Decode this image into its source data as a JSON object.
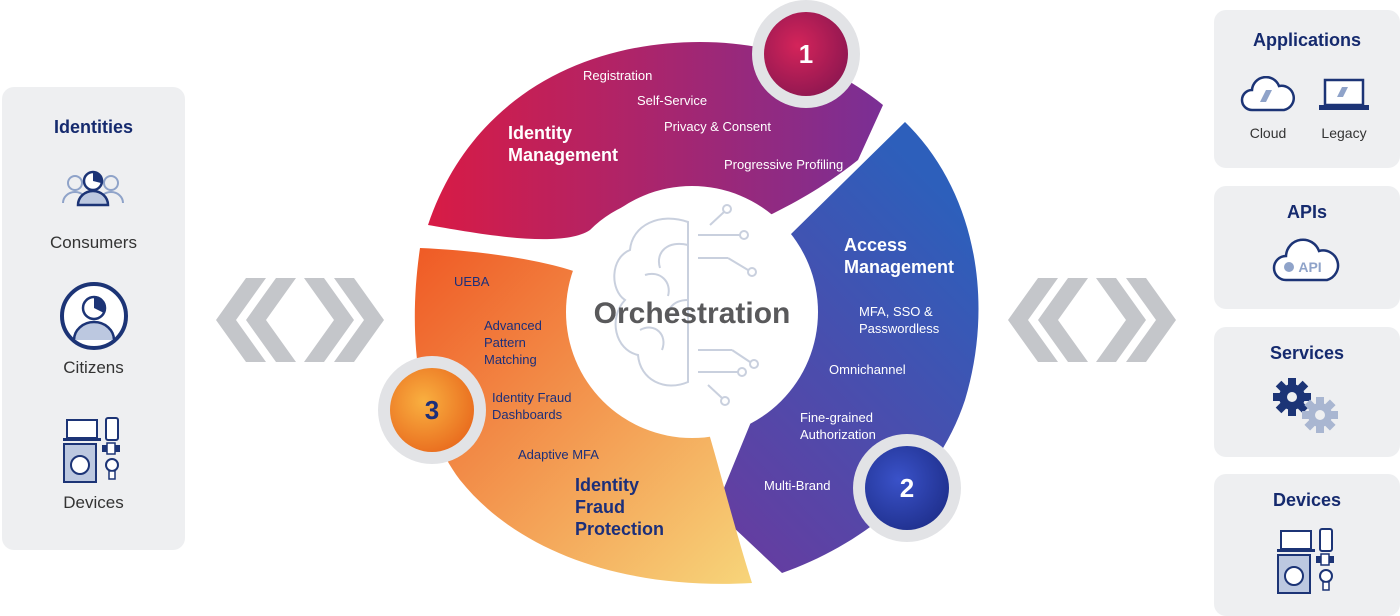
{
  "left_panel": {
    "title": "Identities",
    "items": [
      {
        "label": "Consumers",
        "icon": "consumers-icon"
      },
      {
        "label": "Citizens",
        "icon": "citizen-icon"
      },
      {
        "label": "Devices",
        "icon": "devices-icon"
      }
    ]
  },
  "center": {
    "title": "Orchestration",
    "segments": [
      {
        "number": "1",
        "title_lines": [
          "Identity",
          "Management"
        ],
        "items": [
          "Registration",
          "Self-Service",
          "Privacy & Consent",
          "Progressive Profiling"
        ]
      },
      {
        "number": "2",
        "title_lines": [
          "Access",
          "Management"
        ],
        "items": [
          "MFA, SSO &",
          "Passwordless",
          "Omnichannel",
          "Fine-grained",
          "Authorization",
          "Multi-Brand"
        ]
      },
      {
        "number": "3",
        "title_lines": [
          "Identity",
          "Fraud",
          "Protection"
        ],
        "items": [
          "UEBA",
          "Advanced",
          "Pattern",
          "Matching",
          "Identity Fraud",
          "Dashboards",
          "Adaptive MFA"
        ]
      }
    ]
  },
  "right_panels": {
    "applications": {
      "title": "Applications",
      "items": [
        {
          "label": "Cloud",
          "icon": "cloud-icon"
        },
        {
          "label": "Legacy",
          "icon": "laptop-icon"
        }
      ]
    },
    "apis": {
      "title": "APIs",
      "badge": "API"
    },
    "services": {
      "title": "Services"
    },
    "devices": {
      "title": "Devices"
    }
  },
  "colors": {
    "title_navy": "#152a6e",
    "segment1": [
      "#d81b45",
      "#7a2f95"
    ],
    "segment2": [
      "#6a3a9e",
      "#2d5fbb"
    ],
    "segment3": [
      "#ef5a25",
      "#f7d57a"
    ],
    "arrows": "#c4c6ca",
    "panel_bg": "#eeeff1"
  }
}
